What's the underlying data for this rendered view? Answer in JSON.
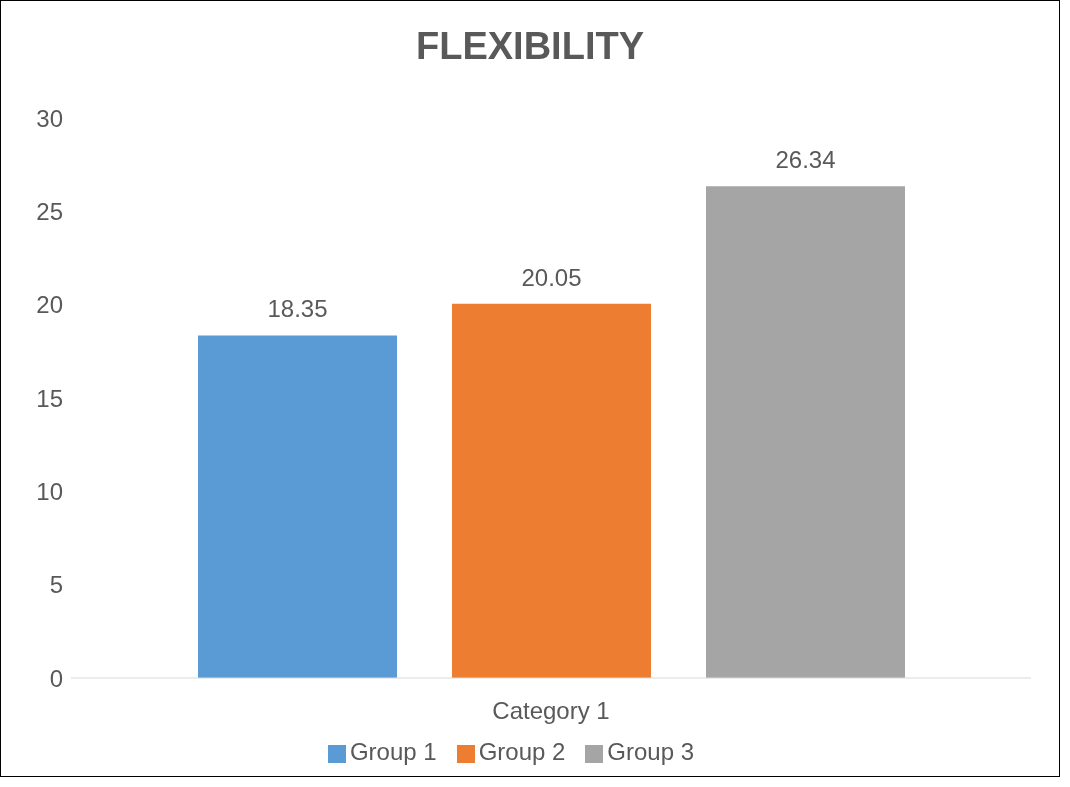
{
  "chart_data": {
    "type": "bar",
    "title": "FLEXIBILITY",
    "categories": [
      "Category 1"
    ],
    "series": [
      {
        "name": "Group 1",
        "color": "#5b9bd5",
        "values": [
          18.35
        ]
      },
      {
        "name": "Group 2",
        "color": "#ed7d31",
        "values": [
          20.05
        ]
      },
      {
        "name": "Group 3",
        "color": "#a5a5a5",
        "values": [
          26.34
        ]
      }
    ],
    "ylim": [
      0,
      30
    ],
    "yticks": [
      0,
      5,
      10,
      15,
      20,
      25,
      30
    ],
    "data_labels": true,
    "legend": "bottom"
  }
}
